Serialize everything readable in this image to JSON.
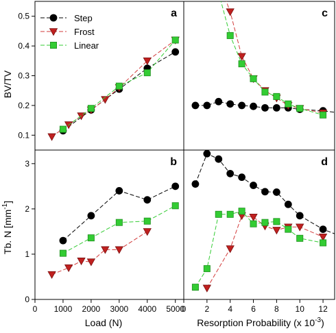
{
  "colors": {
    "step": "#000000",
    "frost_marker": "#c0201f",
    "frost_line": "#d23a3a",
    "linear_marker": "#33cc33",
    "linear_line": "#33cc33",
    "frame": "#000000"
  },
  "legend": {
    "placement": "top-left of panel a",
    "entries": [
      "Step",
      "Frost",
      "Linear"
    ]
  },
  "axes_text": {
    "ylabel_top": "BV/TV",
    "ylabel_bottom_main": "Tb. N [mm",
    "ylabel_bottom_sup": "-1",
    "ylabel_bottom_tail": "]",
    "xlabel_left": "Load (N)",
    "xlabel_right_main": "Resorption Probability (x 10",
    "xlabel_right_sup": "-3",
    "xlabel_right_tail": ")"
  },
  "chart_data": [
    {
      "panel": "a",
      "type": "line",
      "xlim": [
        0,
        5300
      ],
      "ylim": [
        0.05,
        0.55
      ],
      "yticks": [
        "0.1",
        "0.2",
        "0.3",
        "0.4",
        "0.5"
      ],
      "ytick_values": [
        0.1,
        0.2,
        0.3,
        0.4,
        0.5
      ],
      "xticks": [],
      "series": [
        {
          "name": "Step",
          "x": [
            1000,
            2000,
            3000,
            4000,
            5000
          ],
          "y": [
            0.115,
            0.185,
            0.255,
            0.325,
            0.38
          ]
        },
        {
          "name": "Frost",
          "x": [
            600,
            1200,
            1650,
            2000,
            2500,
            3000,
            4000,
            5000
          ],
          "y": [
            0.095,
            0.135,
            0.165,
            0.185,
            0.22,
            0.26,
            0.35,
            0.42
          ]
        },
        {
          "name": "Linear",
          "x": [
            1000,
            2000,
            3000,
            4000,
            5000
          ],
          "y": [
            0.12,
            0.19,
            0.265,
            0.31,
            0.42
          ]
        }
      ]
    },
    {
      "panel": "b",
      "type": "line",
      "xlim": [
        0,
        5300
      ],
      "ylim": [
        0,
        3.3
      ],
      "yticks": [
        "0",
        "1",
        "2",
        "3"
      ],
      "ytick_values": [
        0,
        1,
        2,
        3
      ],
      "xticks": [
        "0",
        "1000",
        "2000",
        "3000",
        "4000",
        "5000"
      ],
      "xtick_values": [
        0,
        1000,
        2000,
        3000,
        4000,
        5000
      ],
      "series": [
        {
          "name": "Step",
          "x": [
            1000,
            2000,
            3000,
            4000,
            5000
          ],
          "y": [
            1.3,
            1.85,
            2.4,
            2.2,
            2.5
          ]
        },
        {
          "name": "Frost",
          "x": [
            600,
            1200,
            1650,
            2000,
            2500,
            3000,
            4000
          ],
          "y": [
            0.55,
            0.7,
            0.85,
            0.83,
            1.1,
            1.1,
            1.5
          ]
        },
        {
          "name": "Linear",
          "x": [
            1000,
            2000,
            3000,
            4000,
            5000
          ],
          "y": [
            1.02,
            1.36,
            1.7,
            1.73,
            2.07
          ]
        }
      ]
    },
    {
      "panel": "c",
      "type": "line",
      "xlim": [
        0,
        13
      ],
      "ylim": [
        0.05,
        0.55
      ],
      "yticks": [],
      "xticks": [],
      "series": [
        {
          "name": "Step",
          "x": [
            1,
            2,
            3,
            4,
            5,
            6,
            7,
            8,
            9,
            10,
            12
          ],
          "y": [
            0.2,
            0.2,
            0.213,
            0.205,
            0.2,
            0.197,
            0.192,
            0.192,
            0.192,
            0.187,
            0.182
          ]
        },
        {
          "name": "Frost",
          "x": [
            3,
            4,
            5,
            6,
            7,
            8,
            9,
            10,
            12
          ],
          "y": [
            0.62,
            0.515,
            0.365,
            0.29,
            0.25,
            0.225,
            0.2,
            0.19,
            0.175
          ]
        },
        {
          "name": "Linear",
          "x": [
            3,
            4,
            5,
            6,
            7,
            8,
            9,
            10,
            12
          ],
          "y": [
            0.58,
            0.435,
            0.34,
            0.29,
            0.245,
            0.23,
            0.205,
            0.19,
            0.168
          ]
        }
      ],
      "series_extension": {
        "Step_end_x": 13,
        "Step_end_y": 0.177
      }
    },
    {
      "panel": "d",
      "type": "line",
      "xlim": [
        0,
        13
      ],
      "ylim": [
        0,
        3.3
      ],
      "yticks": [],
      "xticks": [
        "0",
        "2",
        "4",
        "6",
        "8",
        "10",
        "12"
      ],
      "xtick_values": [
        0,
        2,
        4,
        6,
        8,
        10,
        12
      ],
      "series": [
        {
          "name": "Step",
          "x": [
            1,
            2,
            3,
            4,
            5,
            6,
            7,
            8,
            9,
            10,
            12
          ],
          "y": [
            2.55,
            3.22,
            3.1,
            2.78,
            2.7,
            2.52,
            2.38,
            2.37,
            2.1,
            1.85,
            1.55
          ]
        },
        {
          "name": "Frost",
          "x": [
            2,
            4,
            5,
            6,
            7,
            8,
            9,
            10,
            12
          ],
          "y": [
            0.25,
            1.12,
            1.85,
            1.82,
            1.62,
            1.53,
            1.6,
            1.6,
            1.38
          ]
        },
        {
          "name": "Linear",
          "x": [
            1,
            2,
            3,
            4,
            5,
            6,
            7,
            8,
            9,
            10,
            12
          ],
          "y": [
            0.27,
            0.68,
            1.88,
            1.88,
            1.95,
            1.67,
            1.7,
            1.72,
            1.55,
            1.35,
            1.25
          ]
        }
      ],
      "series_extension": {
        "Step_end_x": 13,
        "Step_end_y": 1.45
      }
    }
  ],
  "panel_letters": [
    "a",
    "b",
    "c",
    "d"
  ]
}
